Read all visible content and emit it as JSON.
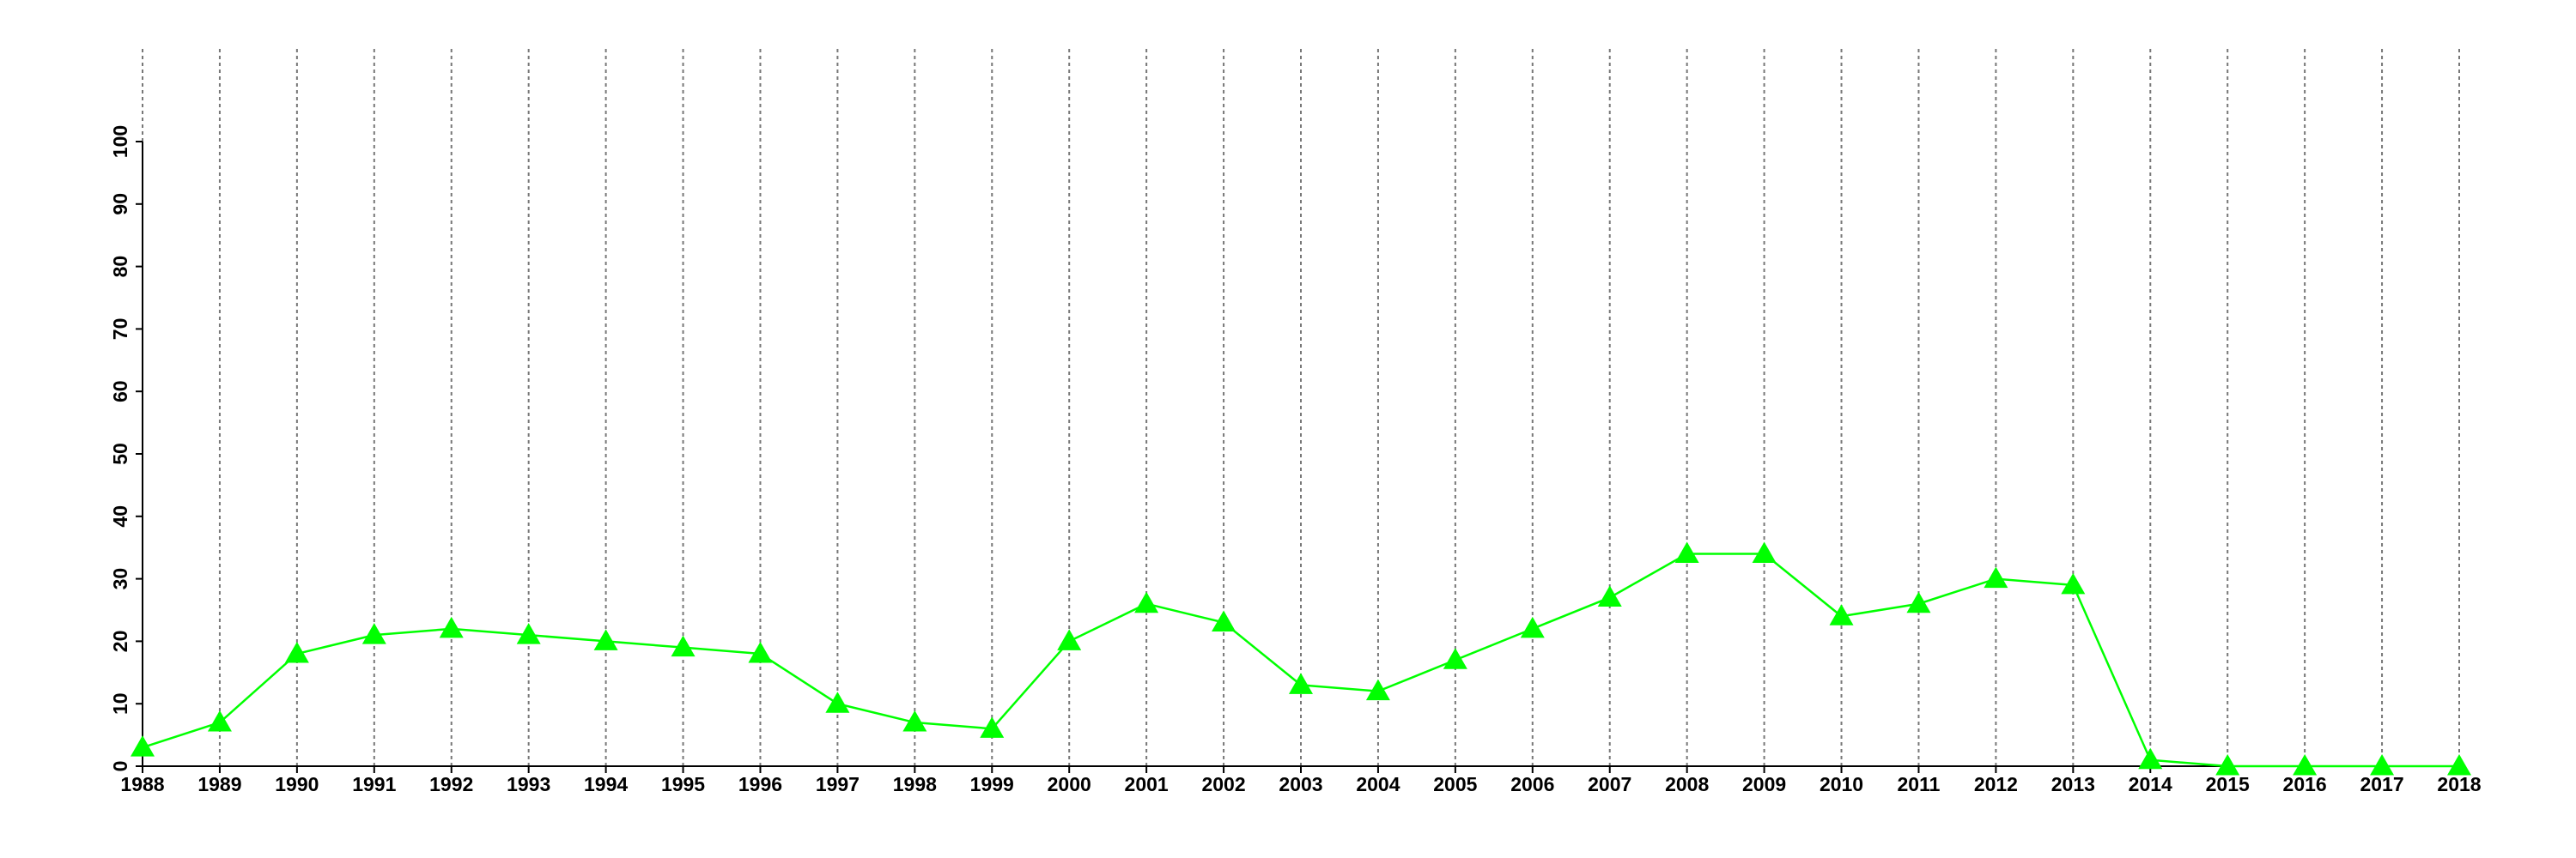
{
  "chart_data": {
    "type": "line",
    "x": [
      1988,
      1989,
      1990,
      1991,
      1992,
      1993,
      1994,
      1995,
      1996,
      1997,
      1998,
      1999,
      2000,
      2001,
      2002,
      2003,
      2004,
      2005,
      2006,
      2007,
      2008,
      2009,
      2010,
      2011,
      2012,
      2013,
      2014,
      2015,
      2016,
      2017,
      2018
    ],
    "values": [
      3,
      7,
      18,
      21,
      22,
      21,
      20,
      19,
      18,
      10,
      7,
      6,
      20,
      26,
      23,
      13,
      12,
      17,
      22,
      27,
      34,
      34,
      24,
      26,
      30,
      29,
      1,
      0,
      0,
      0,
      0
    ],
    "color": "#00ff00",
    "xlim": [
      1988,
      2018
    ],
    "xticks": [
      1988,
      1989,
      1990,
      1991,
      1992,
      1993,
      1994,
      1995,
      1996,
      1997,
      1998,
      1999,
      2000,
      2001,
      2002,
      2003,
      2004,
      2005,
      2006,
      2007,
      2008,
      2009,
      2010,
      2011,
      2012,
      2013,
      2014,
      2015,
      2016,
      2017,
      2018
    ],
    "ylim": [
      0,
      100
    ],
    "yticks": [
      0,
      10,
      20,
      30,
      40,
      50,
      60,
      70,
      80,
      90,
      100
    ],
    "grid": true
  }
}
